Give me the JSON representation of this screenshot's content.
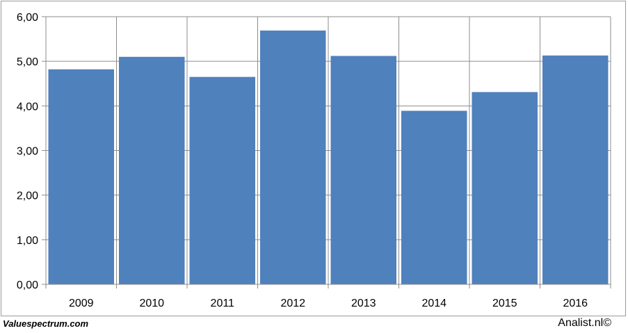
{
  "chart_data": {
    "type": "bar",
    "categories": [
      "2009",
      "2010",
      "2011",
      "2012",
      "2013",
      "2014",
      "2015",
      "2016"
    ],
    "values": [
      4.82,
      5.1,
      4.65,
      5.69,
      5.12,
      3.89,
      4.31,
      5.13
    ],
    "title": "",
    "xlabel": "",
    "ylabel": "",
    "ylim": [
      0,
      6
    ],
    "yticks": [
      "0,00",
      "1,00",
      "2,00",
      "3,00",
      "4,00",
      "5,00",
      "6,00"
    ],
    "grid": true,
    "bar_color": "#4f81bd"
  },
  "footer": {
    "source_left": "Valuespectrum.com",
    "source_right": "Analist.nl©"
  }
}
